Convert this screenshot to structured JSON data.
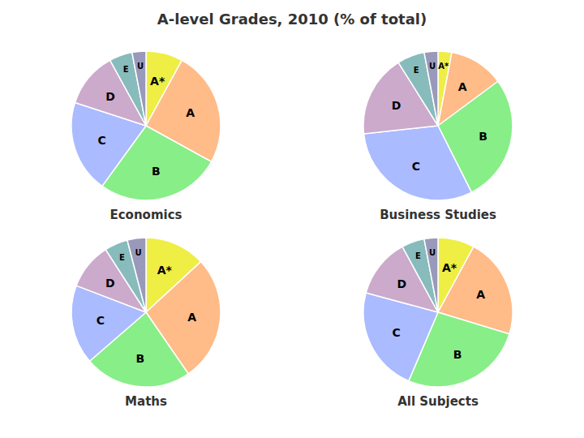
{
  "title": "A-level Grades, 2010 (% of total)",
  "chart_data": [
    {
      "type": "pie",
      "title": "Economics",
      "categories": [
        "A*",
        "A",
        "B",
        "C",
        "D",
        "E",
        "U"
      ],
      "values": [
        8,
        25,
        27,
        20,
        12,
        5,
        3
      ],
      "colors": [
        "#EEEE44",
        "#FFBB88",
        "#88EE88",
        "#AABBFF",
        "#CCAACC",
        "#88BBBB",
        "#9999BB"
      ]
    },
    {
      "type": "pie",
      "title": "Business Studies",
      "categories": [
        "A*",
        "A",
        "B",
        "C",
        "D",
        "E",
        "U"
      ],
      "values": [
        3,
        12,
        28,
        31,
        18,
        6,
        3
      ],
      "colors": [
        "#EEEE44",
        "#FFBB88",
        "#88EE88",
        "#AABBFF",
        "#CCAACC",
        "#88BBBB",
        "#9999BB"
      ]
    },
    {
      "type": "pie",
      "title": "Maths",
      "categories": [
        "A*",
        "A",
        "B",
        "C",
        "D",
        "E",
        "U"
      ],
      "values": [
        13,
        27,
        23,
        17,
        10,
        5,
        4
      ],
      "colors": [
        "#EEEE44",
        "#FFBB88",
        "#88EE88",
        "#AABBFF",
        "#CCAACC",
        "#88BBBB",
        "#9999BB"
      ]
    },
    {
      "type": "pie",
      "title": "All Subjects",
      "categories": [
        "A*",
        "A",
        "B",
        "C",
        "D",
        "E",
        "U"
      ],
      "values": [
        8,
        22,
        27,
        23,
        13,
        5,
        3
      ],
      "colors": [
        "#EEEE44",
        "#FFBB88",
        "#88EE88",
        "#AABBFF",
        "#CCAACC",
        "#88BBBB",
        "#9999BB"
      ]
    }
  ]
}
